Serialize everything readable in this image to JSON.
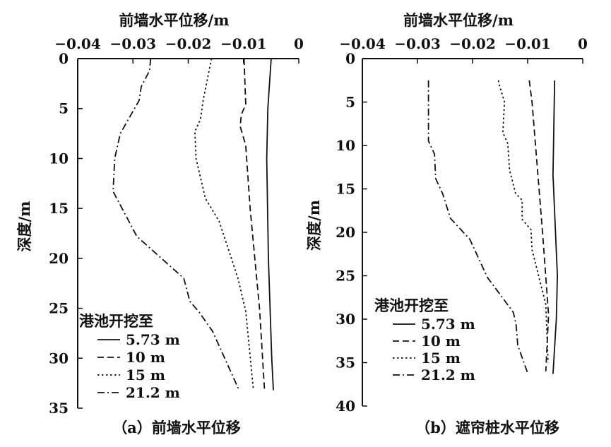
{
  "chart_data": [
    {
      "type": "line",
      "panel": "a",
      "caption": "（a）前墙水平位移",
      "title": "前墙水平位移/m",
      "xlabel": "前墙水平位移/m",
      "ylabel": "深度/m",
      "xlim": [
        -0.04,
        0
      ],
      "ylim": [
        0,
        35
      ],
      "xticks": [
        "-0.04",
        "-0.03",
        "-0.02",
        "-0.01",
        "0"
      ],
      "xtick_values": [
        -0.04,
        -0.03,
        -0.02,
        -0.01,
        0
      ],
      "yticks": [
        0,
        5,
        10,
        15,
        20,
        25,
        30,
        35
      ],
      "legend_title": "港池开挖至",
      "legend_position": "bottom-left",
      "series": [
        {
          "name": "5.73 m",
          "style": "solid",
          "points": [
            [
              -0.005,
              0
            ],
            [
              -0.0056,
              5
            ],
            [
              -0.0058,
              10
            ],
            [
              -0.0055,
              20
            ],
            [
              -0.0049,
              30
            ],
            [
              -0.0046,
              33.2
            ]
          ]
        },
        {
          "name": "10 m",
          "style": "dashed",
          "points": [
            [
              -0.0099,
              0
            ],
            [
              -0.0096,
              4.6
            ],
            [
              -0.0104,
              5.6
            ],
            [
              -0.0106,
              6.8
            ],
            [
              -0.0096,
              8.7
            ],
            [
              -0.0088,
              15
            ],
            [
              -0.0071,
              25
            ],
            [
              -0.0062,
              33.2
            ]
          ]
        },
        {
          "name": "15 m",
          "style": "dotted",
          "points": [
            [
              -0.0158,
              0
            ],
            [
              -0.0173,
              4.2
            ],
            [
              -0.0178,
              6.1
            ],
            [
              -0.0188,
              7.3
            ],
            [
              -0.0186,
              10
            ],
            [
              -0.0169,
              14
            ],
            [
              -0.0144,
              16.3
            ],
            [
              -0.011,
              22
            ],
            [
              -0.0096,
              25.3
            ],
            [
              -0.0082,
              33.2
            ]
          ]
        },
        {
          "name": "21.2 m",
          "style": "dashdot",
          "points": [
            [
              -0.0268,
              0
            ],
            [
              -0.027,
              1.2
            ],
            [
              -0.0285,
              2.8
            ],
            [
              -0.0289,
              4.2
            ],
            [
              -0.0323,
              7.5
            ],
            [
              -0.0333,
              10
            ],
            [
              -0.0336,
              13.3
            ],
            [
              -0.0293,
              17.8
            ],
            [
              -0.0208,
              22
            ],
            [
              -0.0197,
              24.3
            ],
            [
              -0.018,
              25.4
            ],
            [
              -0.0156,
              27.3
            ],
            [
              -0.0108,
              33.2
            ]
          ]
        }
      ]
    },
    {
      "type": "line",
      "panel": "b",
      "caption": "（b）遮帘桩水平位移",
      "title": "前墙水平位移/m",
      "xlabel": "前墙水平位移/m",
      "ylabel": "深度/m",
      "xlim": [
        -0.04,
        0
      ],
      "ylim": [
        0,
        40
      ],
      "xticks": [
        "-0.04",
        "-0.03",
        "-0.02",
        "-0.01",
        "0"
      ],
      "xtick_values": [
        -0.04,
        -0.03,
        -0.02,
        -0.01,
        0
      ],
      "yticks": [
        0,
        5,
        10,
        15,
        20,
        25,
        30,
        35,
        40
      ],
      "legend_title": "港池开挖至",
      "legend_position": "bottom-left",
      "series": [
        {
          "name": "5.73 m",
          "style": "solid",
          "points": [
            [
              -0.0051,
              2.5
            ],
            [
              -0.0054,
              13.4
            ],
            [
              -0.0046,
              25
            ],
            [
              -0.0048,
              30
            ],
            [
              -0.0054,
              36.3
            ]
          ]
        },
        {
          "name": "10 m",
          "style": "dashed",
          "points": [
            [
              -0.0097,
              2.5
            ],
            [
              -0.0092,
              5
            ],
            [
              -0.0073,
              20
            ],
            [
              -0.0062,
              29.5
            ],
            [
              -0.0067,
              36
            ]
          ]
        },
        {
          "name": "15 m",
          "style": "dotted",
          "points": [
            [
              -0.0153,
              2.5
            ],
            [
              -0.0152,
              2.9
            ],
            [
              -0.0142,
              5
            ],
            [
              -0.0145,
              8.5
            ],
            [
              -0.0136,
              9.8
            ],
            [
              -0.0133,
              12.8
            ],
            [
              -0.0122,
              15.5
            ],
            [
              -0.011,
              16.3
            ],
            [
              -0.011,
              18.5
            ],
            [
              -0.0094,
              19.7
            ],
            [
              -0.0092,
              22
            ],
            [
              -0.0067,
              28.3
            ],
            [
              -0.0063,
              35
            ]
          ]
        },
        {
          "name": "21.2 m",
          "style": "dashdot",
          "points": [
            [
              -0.028,
              2.5
            ],
            [
              -0.028,
              9.5
            ],
            [
              -0.0269,
              11
            ],
            [
              -0.0267,
              13.8
            ],
            [
              -0.0254,
              15.6
            ],
            [
              -0.024,
              18.4
            ],
            [
              -0.0205,
              20.8
            ],
            [
              -0.0173,
              25.2
            ],
            [
              -0.0126,
              29.2
            ],
            [
              -0.0121,
              30.6
            ],
            [
              -0.0118,
              33
            ],
            [
              -0.01,
              36.2
            ]
          ]
        }
      ]
    }
  ]
}
